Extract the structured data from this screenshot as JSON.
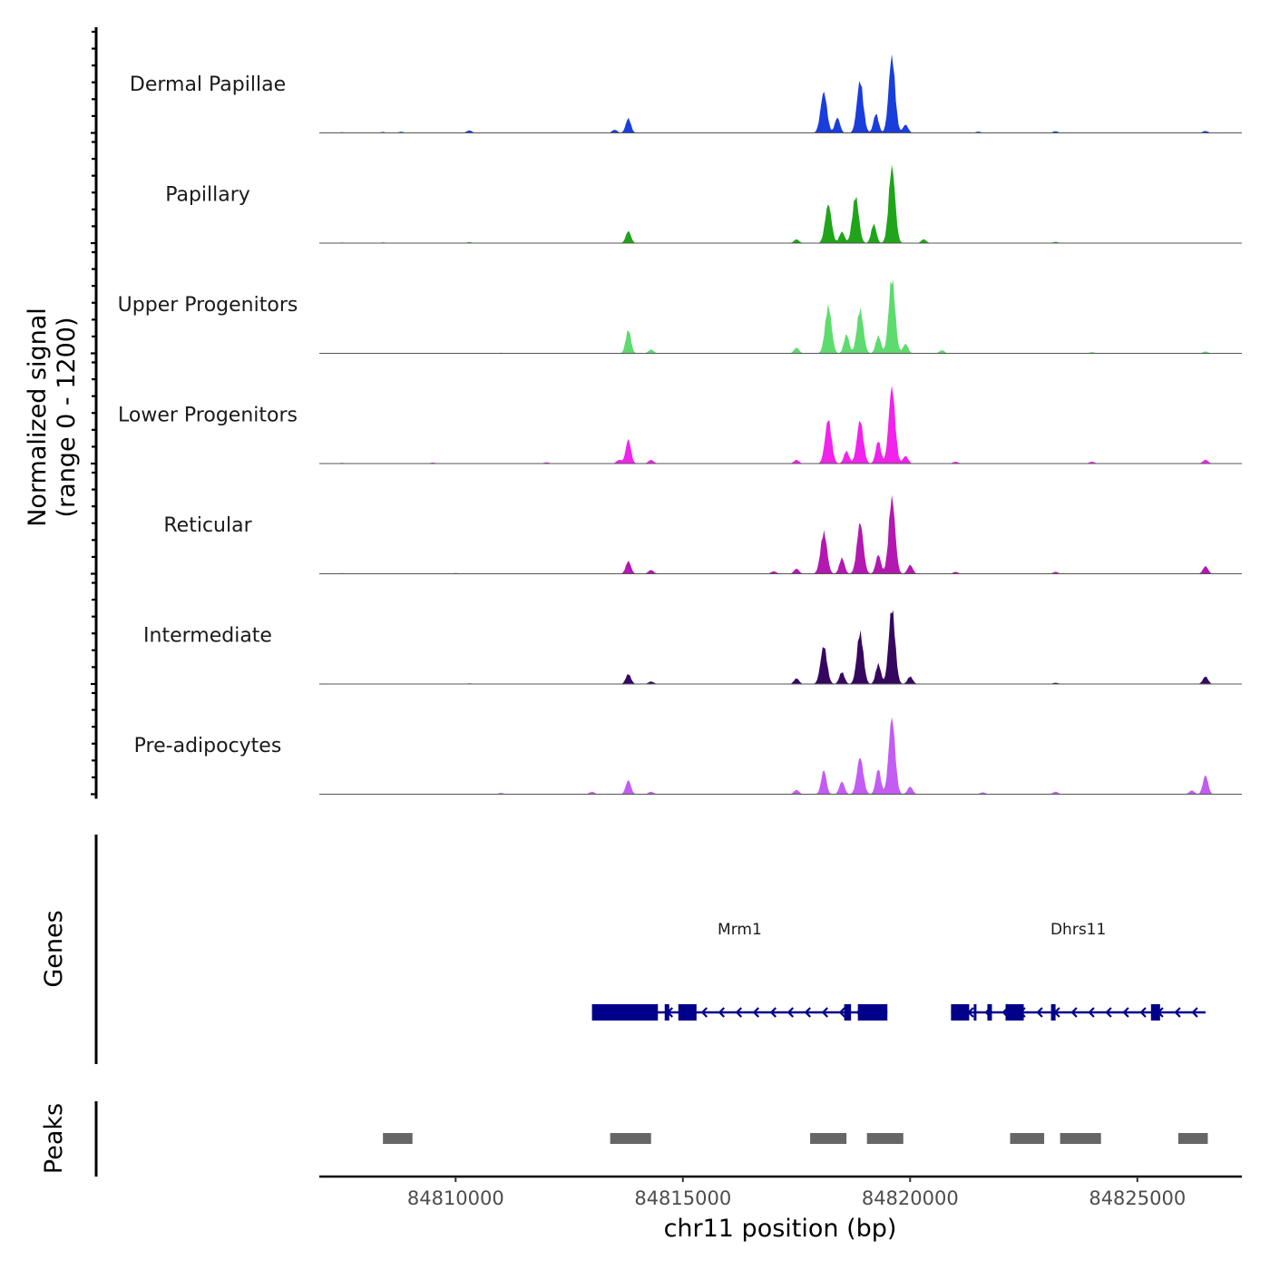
{
  "chart_data": {
    "type": "area",
    "title": "",
    "chromosome": "chr11",
    "xlabel": "chr11 position (bp)",
    "ylabel": [
      "Normalized signal",
      "(range 0 - 1200)"
    ],
    "ylim": [
      0,
      1200
    ],
    "xlim": [
      84807000,
      84827300
    ],
    "x_ticks": [
      84810000,
      84815000,
      84820000,
      84825000
    ],
    "x_tick_labels": [
      "84810000",
      "84815000",
      "84820000",
      "84825000"
    ],
    "tracks": [
      {
        "name": "Dermal Papillae",
        "color": "#1a3edb",
        "peaks": [
          [
            84807500,
            10
          ],
          [
            84808400,
            15
          ],
          [
            84808800,
            18
          ],
          [
            84810300,
            40
          ],
          [
            84813500,
            50
          ],
          [
            84813800,
            230
          ],
          [
            84818100,
            640
          ],
          [
            84818400,
            240
          ],
          [
            84818900,
            820
          ],
          [
            84819250,
            300
          ],
          [
            84819600,
            1200
          ],
          [
            84819900,
            130
          ],
          [
            84821500,
            20
          ],
          [
            84823200,
            25
          ],
          [
            84826500,
            30
          ]
        ]
      },
      {
        "name": "Papillary",
        "color": "#1fa41a",
        "peaks": [
          [
            84807500,
            10
          ],
          [
            84808400,
            12
          ],
          [
            84810300,
            15
          ],
          [
            84813800,
            190
          ],
          [
            84817500,
            60
          ],
          [
            84818200,
            610
          ],
          [
            84818500,
            180
          ],
          [
            84818800,
            740
          ],
          [
            84819200,
            300
          ],
          [
            84819600,
            1200
          ],
          [
            84820300,
            60
          ],
          [
            84823200,
            20
          ]
        ]
      },
      {
        "name": "Upper Progenitors",
        "color": "#5edb6e",
        "peaks": [
          [
            84808400,
            8
          ],
          [
            84811000,
            10
          ],
          [
            84813800,
            380
          ],
          [
            84814300,
            60
          ],
          [
            84817500,
            90
          ],
          [
            84818200,
            750
          ],
          [
            84818600,
            300
          ],
          [
            84818900,
            700
          ],
          [
            84819300,
            280
          ],
          [
            84819600,
            1200
          ],
          [
            84819900,
            150
          ],
          [
            84820700,
            50
          ],
          [
            84824000,
            20
          ],
          [
            84826500,
            30
          ]
        ]
      },
      {
        "name": "Lower Progenitors",
        "color": "#f022ec",
        "peaks": [
          [
            84807500,
            10
          ],
          [
            84809500,
            15
          ],
          [
            84812000,
            20
          ],
          [
            84813600,
            60
          ],
          [
            84813800,
            380
          ],
          [
            84814300,
            60
          ],
          [
            84817500,
            60
          ],
          [
            84818200,
            700
          ],
          [
            84818600,
            200
          ],
          [
            84818900,
            680
          ],
          [
            84819300,
            360
          ],
          [
            84819600,
            1200
          ],
          [
            84819900,
            120
          ],
          [
            84821000,
            30
          ],
          [
            84824000,
            30
          ],
          [
            84826500,
            60
          ]
        ]
      },
      {
        "name": "Reticular",
        "color": "#b318b0",
        "peaks": [
          [
            84807500,
            10
          ],
          [
            84810000,
            12
          ],
          [
            84813800,
            200
          ],
          [
            84814300,
            60
          ],
          [
            84817000,
            40
          ],
          [
            84817500,
            80
          ],
          [
            84818100,
            660
          ],
          [
            84818500,
            250
          ],
          [
            84818900,
            800
          ],
          [
            84819300,
            300
          ],
          [
            84819600,
            1200
          ],
          [
            84820000,
            140
          ],
          [
            84821000,
            30
          ],
          [
            84823200,
            30
          ],
          [
            84826500,
            120
          ]
        ]
      },
      {
        "name": "Intermediate",
        "color": "#36075f",
        "peaks": [
          [
            84807500,
            8
          ],
          [
            84810300,
            10
          ],
          [
            84813800,
            160
          ],
          [
            84814300,
            40
          ],
          [
            84817500,
            90
          ],
          [
            84818100,
            600
          ],
          [
            84818500,
            190
          ],
          [
            84818900,
            820
          ],
          [
            84819300,
            320
          ],
          [
            84819600,
            1200
          ],
          [
            84820000,
            120
          ],
          [
            84823200,
            20
          ],
          [
            84826500,
            120
          ]
        ]
      },
      {
        "name": "Pre-adipocytes",
        "color": "#c25cf2",
        "peaks": [
          [
            84811000,
            20
          ],
          [
            84813000,
            40
          ],
          [
            84813800,
            220
          ],
          [
            84814300,
            40
          ],
          [
            84817500,
            70
          ],
          [
            84818100,
            380
          ],
          [
            84818500,
            200
          ],
          [
            84818900,
            580
          ],
          [
            84819300,
            400
          ],
          [
            84819600,
            1200
          ],
          [
            84820000,
            120
          ],
          [
            84821600,
            30
          ],
          [
            84823200,
            40
          ],
          [
            84826200,
            60
          ],
          [
            84826500,
            300
          ]
        ]
      }
    ],
    "genes": [
      {
        "name": "Mrm1",
        "start": 84813000,
        "end": 84819500,
        "strand": "-",
        "color": "#00008b",
        "exons": [
          [
            84813000,
            84814450
          ],
          [
            84814600,
            84814700
          ],
          [
            84814900,
            84815300
          ],
          [
            84818550,
            84818700
          ],
          [
            84818850,
            84819500
          ]
        ]
      },
      {
        "name": "Dhrs11",
        "start": 84820900,
        "end": 84826500,
        "strand": "-",
        "color": "#00008b",
        "exons": [
          [
            84820900,
            84821300
          ],
          [
            84821400,
            84821450
          ],
          [
            84821700,
            84821800
          ],
          [
            84822100,
            84822500
          ],
          [
            84823100,
            84823200
          ],
          [
            84825300,
            84825500
          ]
        ]
      }
    ],
    "genes_track_label": "Genes",
    "peaks_track_label": "Peaks",
    "peak_regions": [
      [
        84808400,
        84809050
      ],
      [
        84813400,
        84814300
      ],
      [
        84817800,
        84818600
      ],
      [
        84819050,
        84819850
      ],
      [
        84822200,
        84822950
      ],
      [
        84823300,
        84824200
      ],
      [
        84825900,
        84826550
      ]
    ],
    "peak_color": "#666666"
  }
}
